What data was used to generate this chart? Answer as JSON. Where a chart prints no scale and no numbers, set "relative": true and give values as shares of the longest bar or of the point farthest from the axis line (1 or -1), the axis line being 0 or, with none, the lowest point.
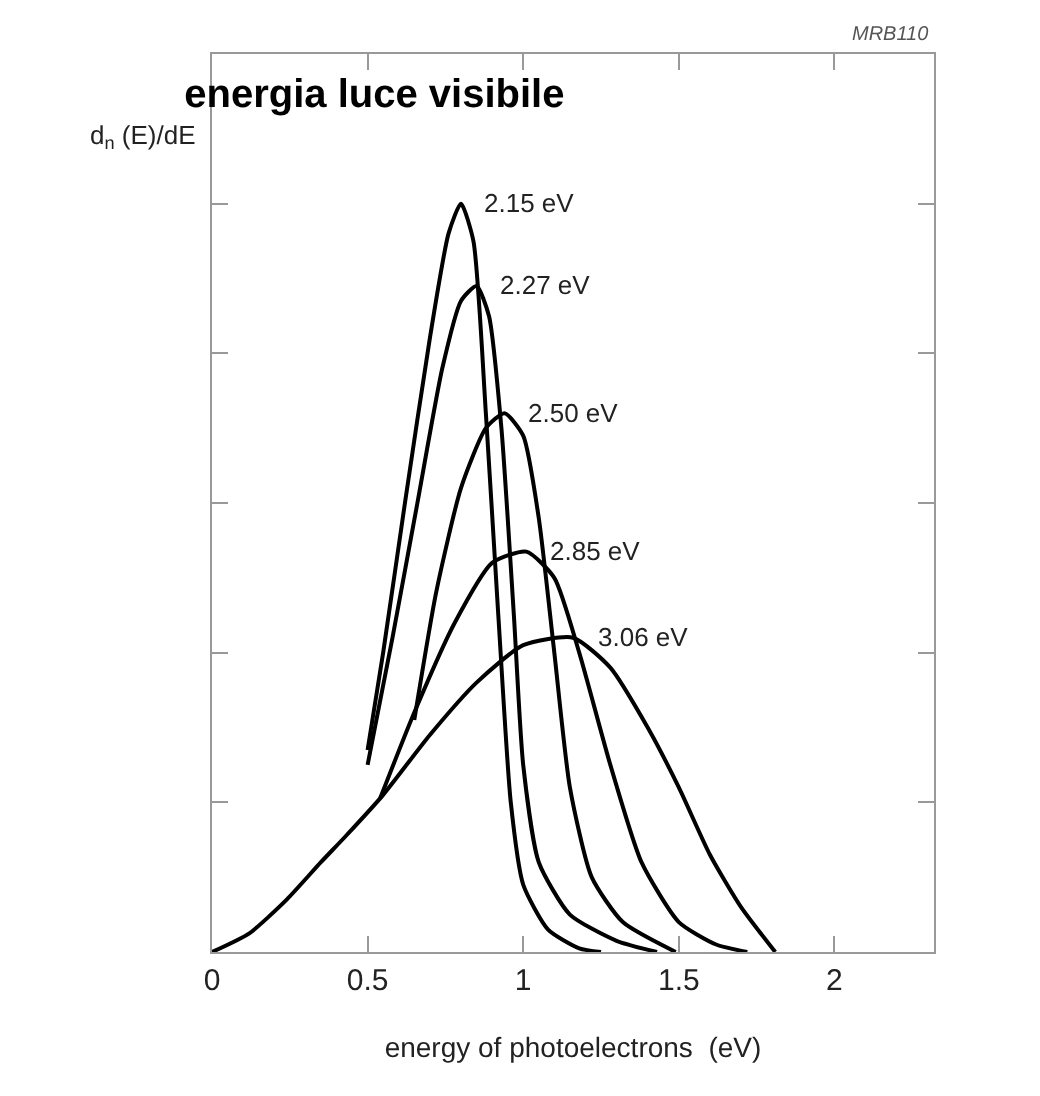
{
  "chart_data": {
    "type": "line",
    "title": "energia luce visibile",
    "xlabel": "energy of photoelectrons  (eV)",
    "ylabel": "d$_{n}$ (E)/dE",
    "annotations": [
      "MRB110"
    ],
    "relative": true,
    "xlim": [
      0,
      2.32
    ],
    "xticks": [
      0,
      0.5,
      1,
      1.5,
      2
    ],
    "grid": false,
    "legend": false,
    "marker": "none",
    "line_style": "solid",
    "series": [
      {
        "name": "2.15 eV",
        "color": "#000000",
        "x": [
          0.5,
          0.55,
          0.62,
          0.7,
          0.76,
          0.8,
          0.84,
          0.88,
          0.92,
          0.96,
          1.0,
          1.08,
          1.18,
          1.25
        ],
        "values": [
          0.27,
          0.4,
          0.6,
          0.82,
          0.96,
          1.0,
          0.95,
          0.72,
          0.45,
          0.2,
          0.09,
          0.03,
          0.005,
          0
        ]
      },
      {
        "name": "2.27 eV",
        "color": "#000000",
        "x": [
          0.5,
          0.58,
          0.66,
          0.74,
          0.8,
          0.85,
          0.89,
          0.93,
          0.97,
          1.0,
          1.05,
          1.15,
          1.3,
          1.43
        ],
        "values": [
          0.25,
          0.42,
          0.6,
          0.78,
          0.87,
          0.89,
          0.85,
          0.7,
          0.45,
          0.25,
          0.12,
          0.05,
          0.015,
          0
        ]
      },
      {
        "name": "2.50 eV",
        "color": "#000000",
        "x": [
          0.65,
          0.72,
          0.8,
          0.88,
          0.94,
          1.0,
          1.05,
          1.1,
          1.15,
          1.22,
          1.32,
          1.49
        ],
        "values": [
          0.31,
          0.48,
          0.62,
          0.7,
          0.72,
          0.69,
          0.58,
          0.4,
          0.22,
          0.1,
          0.04,
          0
        ]
      },
      {
        "name": "2.85 eV",
        "color": "#000000",
        "x": [
          0.54,
          0.65,
          0.78,
          0.9,
          1.01,
          1.1,
          1.18,
          1.28,
          1.38,
          1.5,
          1.62,
          1.72
        ],
        "values": [
          0.205,
          0.32,
          0.44,
          0.52,
          0.535,
          0.5,
          0.4,
          0.25,
          0.12,
          0.04,
          0.01,
          0
        ]
      },
      {
        "name": "3.06 eV",
        "color": "#000000",
        "x": [
          0,
          0.12,
          0.24,
          0.35,
          0.43,
          0.55,
          0.7,
          0.85,
          1.0,
          1.16,
          1.28,
          1.4,
          1.5,
          1.6,
          1.7,
          1.81
        ],
        "values": [
          0,
          0.025,
          0.07,
          0.12,
          0.155,
          0.21,
          0.29,
          0.36,
          0.41,
          0.42,
          0.38,
          0.3,
          0.22,
          0.13,
          0.06,
          0
        ]
      }
    ]
  }
}
